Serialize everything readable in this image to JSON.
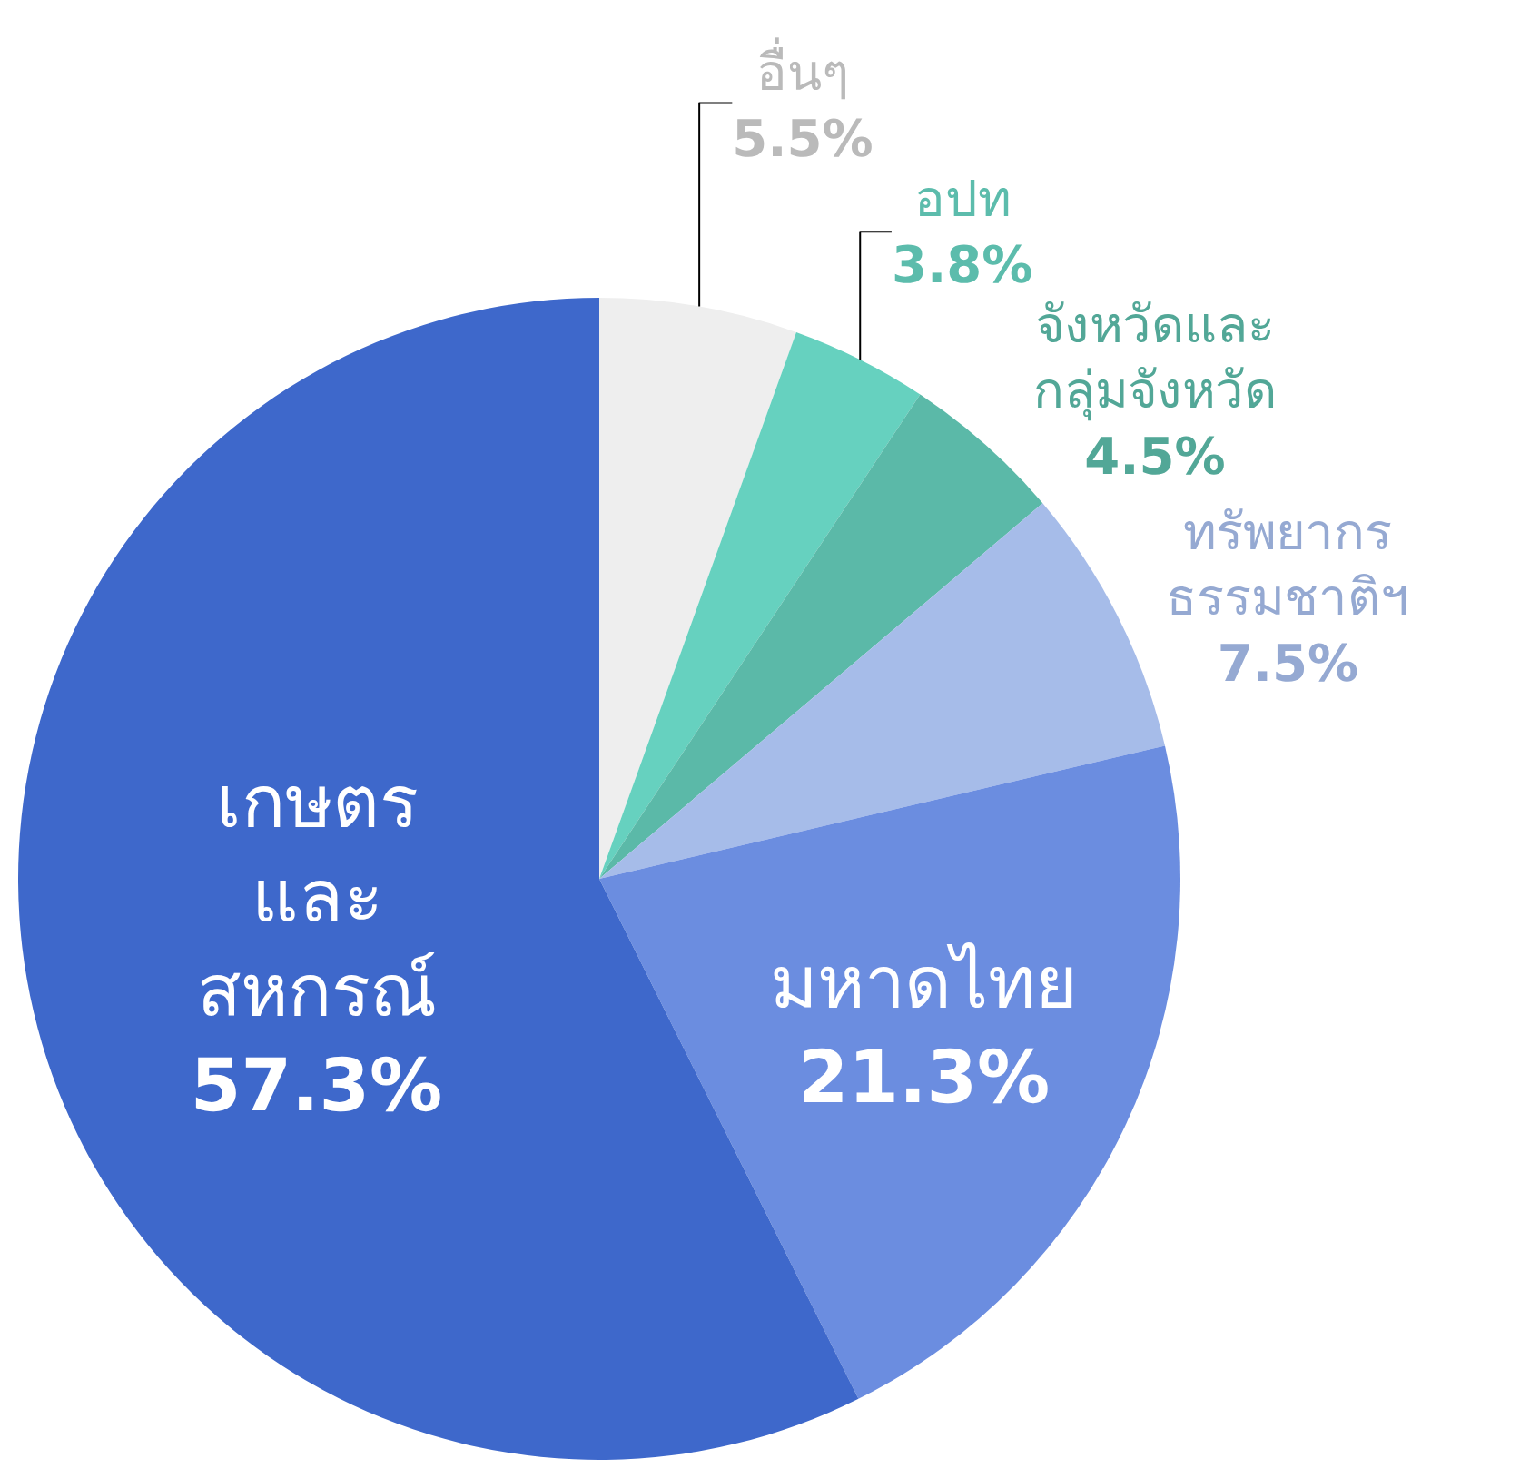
{
  "chart_data": {
    "type": "pie",
    "categories": [
      "อื่นๆ",
      "อปท",
      "จังหวัดและ\nกลุ่มจังหวัด",
      "ทรัพยากร\nธรรมชาติฯ",
      "มหาดไทย",
      "เกษตร\nและ\nสหกรณ์"
    ],
    "values": [
      5.5,
      3.8,
      4.5,
      7.5,
      21.3,
      57.3
    ],
    "value_labels": [
      "5.5%",
      "3.8%",
      "4.5%",
      "7.5%",
      "21.3%",
      "57.3%"
    ],
    "colors": [
      "#eeeeee",
      "#66d1bf",
      "#5bb9a8",
      "#a6bce9",
      "#6b8de0",
      "#3e68cb"
    ]
  }
}
